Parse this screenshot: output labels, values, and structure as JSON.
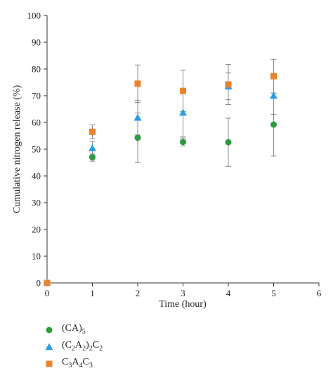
{
  "chart_data": {
    "type": "scatter",
    "title": "",
    "xlabel": "Time (hour)",
    "ylabel": "Cumulative nitrogen release (%)",
    "xlim": [
      0,
      6
    ],
    "ylim": [
      0,
      100
    ],
    "xticks": [
      0,
      1,
      2,
      3,
      4,
      5,
      6
    ],
    "yticks": [
      0,
      10,
      20,
      30,
      40,
      50,
      60,
      70,
      80,
      90,
      100
    ],
    "grid": false,
    "legend_position": "bottom-left",
    "series": [
      {
        "name": "(CA)5",
        "name_parts": [
          {
            "t": "(CA)",
            "sub": false
          },
          {
            "t": "5",
            "sub": true
          }
        ],
        "marker": "circle",
        "color": "#2e9a3f",
        "x": [
          0,
          1,
          2,
          3,
          4,
          5
        ],
        "y": [
          0,
          47,
          54.3,
          52.7,
          52.6,
          59.2
        ],
        "err": [
          0,
          1.5,
          9.2,
          1.5,
          9,
          11.8
        ]
      },
      {
        "name": "(C2A2)2C2",
        "name_parts": [
          {
            "t": "(C",
            "sub": false
          },
          {
            "t": "2",
            "sub": true
          },
          {
            "t": "A",
            "sub": false
          },
          {
            "t": "2",
            "sub": true
          },
          {
            "t": ")",
            "sub": false
          },
          {
            "t": "2",
            "sub": true
          },
          {
            "t": "C",
            "sub": false
          },
          {
            "t": "2",
            "sub": true
          }
        ],
        "marker": "triangle",
        "color": "#2a9ee0",
        "x": [
          0,
          1,
          2,
          3,
          4,
          5
        ],
        "y": [
          0,
          50.4,
          61.8,
          63.7,
          73.5,
          70
        ],
        "err": [
          0,
          2.5,
          6.5,
          9,
          5,
          7
        ]
      },
      {
        "name": "C3A4C3",
        "name_parts": [
          {
            "t": "C",
            "sub": false
          },
          {
            "t": "3",
            "sub": true
          },
          {
            "t": "A",
            "sub": false
          },
          {
            "t": "4",
            "sub": true
          },
          {
            "t": "C",
            "sub": false
          },
          {
            "t": "3",
            "sub": true
          }
        ],
        "marker": "square",
        "color": "#e8842f",
        "x": [
          0,
          1,
          2,
          3,
          4,
          5
        ],
        "y": [
          0,
          56.5,
          74.5,
          71.8,
          74.2,
          77.3
        ],
        "err": [
          0,
          2.6,
          7,
          7.7,
          7.5,
          6.3
        ]
      }
    ]
  }
}
